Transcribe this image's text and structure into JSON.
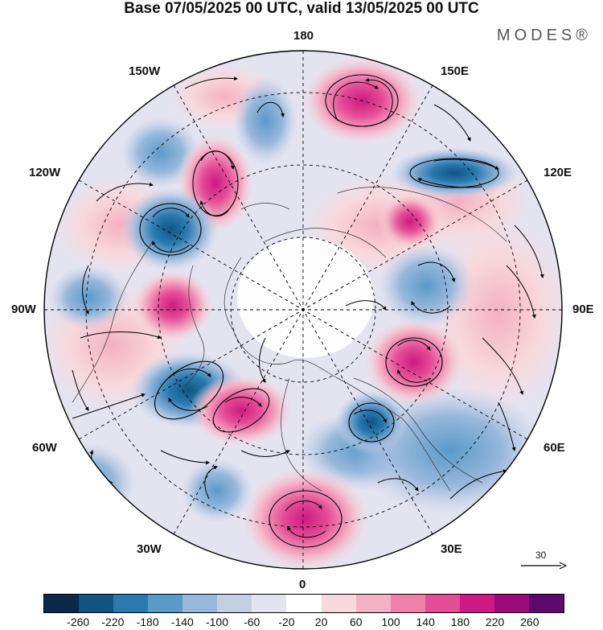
{
  "header": {
    "title": "Base 07/05/2025 00 UTC, valid 13/05/2025 00 UTC"
  },
  "brand": {
    "logo": "MODES®"
  },
  "map": {
    "projection": "north polar stereographic",
    "longitude_labels": {
      "top": "180",
      "bottom": "0",
      "left": "90W",
      "right": "90E",
      "upper_left_outer": "150W",
      "upper_right_outer": "150E",
      "upper_left_inner": "120W",
      "upper_right_inner": "120E",
      "lower_left_inner": "60W",
      "lower_right_inner": "60E",
      "lower_left_outer": "30W",
      "lower_right_outer": "30E"
    },
    "reference_vector": {
      "label": "30"
    }
  },
  "colorbar": {
    "ticks": [
      "-260",
      "-220",
      "-180",
      "-140",
      "-100",
      "-60",
      "-20",
      "20",
      "60",
      "100",
      "140",
      "180",
      "220",
      "260"
    ],
    "colors": [
      "#0b2a4a",
      "#0f5483",
      "#2a7ab0",
      "#5a9ac8",
      "#98b8dc",
      "#c4cfe6",
      "#e4e4f1",
      "#ffffff",
      "#f8d8dc",
      "#f4b0c4",
      "#ee80ac",
      "#e54c96",
      "#cc1a82",
      "#9a0a7a",
      "#5e0870"
    ]
  }
}
